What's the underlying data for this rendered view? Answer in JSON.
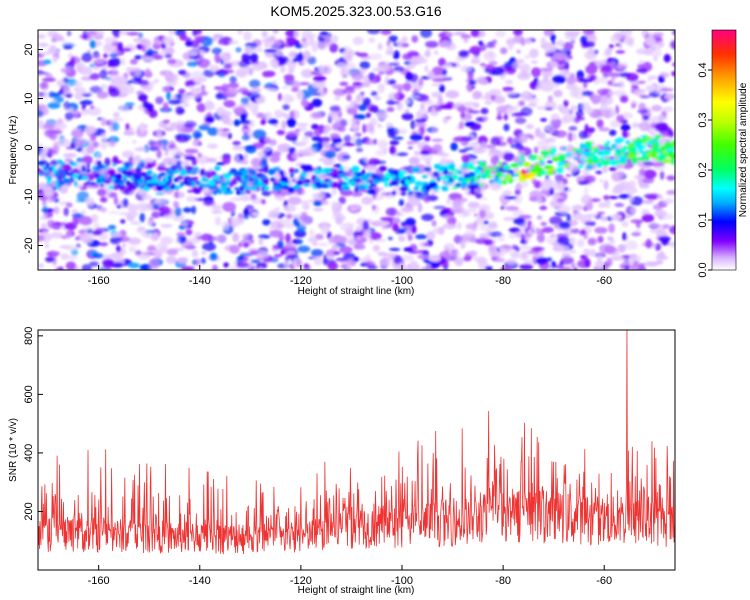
{
  "chart_data": [
    {
      "type": "heatmap",
      "title": "KOM5.2025.323.00.53.G16",
      "xlabel": "Height of straight line (km)",
      "ylabel": "Frequency (Hz)",
      "xlim": [
        -172,
        -46
      ],
      "ylim": [
        -25,
        24
      ],
      "xticks": [
        -160,
        -140,
        -120,
        -100,
        -80,
        -60
      ],
      "yticks": [
        -20,
        -10,
        0,
        10,
        20
      ],
      "colorbar": {
        "label": "Normalized spectral amplitude",
        "range": [
          0.0,
          0.48
        ],
        "ticks": [
          0.0,
          0.1,
          0.2,
          0.3,
          0.4
        ],
        "tick_labels": [
          "0.0",
          "0.1",
          "0.2",
          "0.3",
          "0.4"
        ],
        "colormap": [
          "#ffffff",
          "#d9b3ff",
          "#8000ff",
          "#0000ff",
          "#00b0ff",
          "#00ffff",
          "#00ff60",
          "#40ff00",
          "#c0ff00",
          "#ffff00",
          "#ffa000",
          "#ff3000",
          "#ff0080"
        ]
      },
      "signal_track": [
        {
          "x": -172,
          "f": -5
        },
        {
          "x": -150,
          "f": -6
        },
        {
          "x": -130,
          "f": -7
        },
        {
          "x": -115,
          "f": -6
        },
        {
          "x": -100,
          "f": -7
        },
        {
          "x": -90,
          "f": -6
        },
        {
          "x": -80,
          "f": -5
        },
        {
          "x": -75,
          "f": -4
        },
        {
          "x": -70,
          "f": -3
        },
        {
          "x": -60,
          "f": -1
        },
        {
          "x": -50,
          "f": 0
        },
        {
          "x": -46,
          "f": -1
        }
      ],
      "peak": {
        "x": -76,
        "f": -5,
        "amplitude": 0.47
      }
    },
    {
      "type": "line",
      "xlabel": "Height of straight line (km)",
      "ylabel": "SNR (10 * v/v)",
      "xlim": [
        -172,
        -46
      ],
      "ylim": [
        0,
        820
      ],
      "xticks": [
        -160,
        -140,
        -120,
        -100,
        -80,
        -60
      ],
      "yticks": [
        200,
        400,
        600,
        800
      ],
      "series": [
        {
          "name": "SNR",
          "color": "#ee3333",
          "envelope": [
            {
              "x": -172,
              "mean": 130,
              "max": 300
            },
            {
              "x": -165,
              "mean": 135,
              "max": 470
            },
            {
              "x": -155,
              "mean": 130,
              "max": 400
            },
            {
              "x": -145,
              "mean": 125,
              "max": 370
            },
            {
              "x": -135,
              "mean": 120,
              "max": 330
            },
            {
              "x": -125,
              "mean": 115,
              "max": 310
            },
            {
              "x": -118,
              "mean": 130,
              "max": 330
            },
            {
              "x": -112,
              "mean": 160,
              "max": 430
            },
            {
              "x": -100,
              "mean": 170,
              "max": 460
            },
            {
              "x": -90,
              "mean": 180,
              "max": 490
            },
            {
              "x": -82,
              "mean": 200,
              "max": 560
            },
            {
              "x": -78,
              "mean": 210,
              "max": 580
            },
            {
              "x": -70,
              "mean": 200,
              "max": 520
            },
            {
              "x": -62,
              "mean": 190,
              "max": 470
            },
            {
              "x": -56,
              "mean": 185,
              "max": 480
            },
            {
              "x": -50,
              "mean": 175,
              "max": 460
            },
            {
              "x": -46,
              "mean": 170,
              "max": 450
            }
          ],
          "spike": {
            "x": -55.5,
            "y": 830
          }
        }
      ]
    }
  ]
}
